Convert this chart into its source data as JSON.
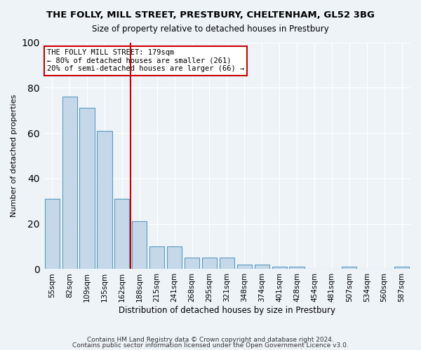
{
  "title1": "THE FOLLY, MILL STREET, PRESTBURY, CHELTENHAM, GL52 3BG",
  "title2": "Size of property relative to detached houses in Prestbury",
  "xlabel": "Distribution of detached houses by size in Prestbury",
  "ylabel": "Number of detached properties",
  "categories": [
    "55sqm",
    "82sqm",
    "109sqm",
    "135sqm",
    "162sqm",
    "188sqm",
    "215sqm",
    "241sqm",
    "268sqm",
    "295sqm",
    "321sqm",
    "348sqm",
    "374sqm",
    "401sqm",
    "428sqm",
    "454sqm",
    "481sqm",
    "507sqm",
    "534sqm",
    "560sqm",
    "587sqm"
  ],
  "values": [
    31,
    76,
    71,
    61,
    31,
    21,
    10,
    10,
    5,
    5,
    5,
    2,
    2,
    1,
    1,
    0,
    0,
    1,
    0,
    0,
    1
  ],
  "bar_color": "#c5d8ea",
  "bar_edge_color": "#5a9abf",
  "highlight_index": 4,
  "highlight_line_color": "#cc0000",
  "annotation_text": "THE FOLLY MILL STREET: 179sqm\n← 80% of detached houses are smaller (261)\n20% of semi-detached houses are larger (66) →",
  "annotation_box_color": "#ffffff",
  "annotation_box_edge": "#cc0000",
  "footer1": "Contains HM Land Registry data © Crown copyright and database right 2024.",
  "footer2": "Contains public sector information licensed under the Open Government Licence v3.0.",
  "bg_color": "#eef3f8",
  "ylim": [
    0,
    100
  ],
  "grid_color": "#ffffff"
}
